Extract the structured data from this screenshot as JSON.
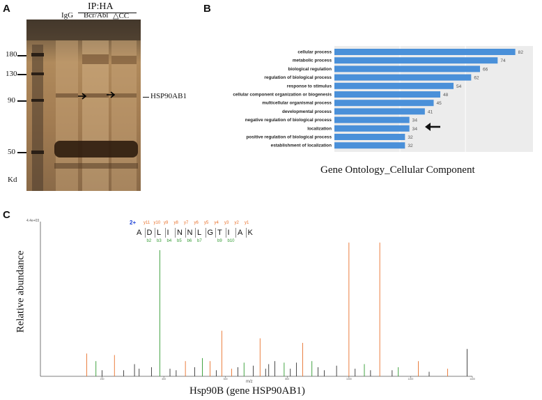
{
  "panels": {
    "a": {
      "letter": "A",
      "header": "IP:HA",
      "lanes": [
        "IgG",
        "Bcr/Abl",
        "△CC"
      ],
      "markers": [
        "180",
        "130",
        "90",
        "50"
      ],
      "unit": "Kd",
      "band_label": "HSP90AB1"
    },
    "b": {
      "letter": "B",
      "caption": "Gene Ontology_Cellular Component",
      "arrow_target": "localization",
      "colors": {
        "bar": "#4a90d9",
        "plot_bg": "#ececec"
      }
    },
    "c": {
      "letter": "C",
      "ylabel": "Relative abundance",
      "xlabel": "m/z",
      "caption": "Hsp90B (gene HSP90AB1)",
      "charge": "2+",
      "scale_label": "4.4e+03",
      "sequence": [
        "A",
        "D",
        "L",
        "I",
        "N",
        "N",
        "L",
        "G",
        "T",
        "I",
        "A",
        "K"
      ],
      "y_ions": [
        "y11",
        "y10",
        "y9",
        "y8",
        "y7",
        "y6",
        "y5",
        "y4",
        "y3",
        "y2",
        "y1"
      ],
      "b_ions": [
        "b2",
        "b3",
        "b4",
        "b5",
        "b6",
        "b7",
        "b9",
        "b10"
      ],
      "colors": {
        "y": "#e8702a",
        "b": "#2e9a2e",
        "other": "#333333"
      }
    }
  },
  "chart_data": [
    {
      "type": "bar",
      "orientation": "horizontal",
      "categories": [
        "cellular process",
        "metabolic process",
        "biological regulation",
        "regulation of biological process",
        "response to stimulus",
        "cellular component organization or biogenesis",
        "multicellular organismal process",
        "developmental process",
        "negative regulation of biological process",
        "localization",
        "positive regulation of biological process",
        "establishment of localization"
      ],
      "values": [
        82,
        74,
        66,
        62,
        54,
        48,
        45,
        41,
        34,
        34,
        32,
        32
      ],
      "xlim": [
        0,
        90
      ],
      "grid": true
    },
    {
      "type": "bar",
      "title": "",
      "xlabel": "m/z",
      "ylabel": "Relative abundance",
      "xlim": [
        0,
        1400
      ],
      "ylim": [
        0,
        100
      ],
      "xticks": [
        200,
        400,
        600,
        800,
        1000,
        1200,
        1400
      ],
      "peaks": [
        {
          "mz": 150,
          "y": 15,
          "c": "y"
        },
        {
          "mz": 180,
          "y": 10,
          "c": "b"
        },
        {
          "mz": 240,
          "y": 14,
          "c": "y"
        },
        {
          "mz": 305,
          "y": 8,
          "c": "o"
        },
        {
          "mz": 387,
          "y": 83,
          "c": "b"
        },
        {
          "mz": 470,
          "y": 10,
          "c": "y"
        },
        {
          "mz": 525,
          "y": 12,
          "c": "b"
        },
        {
          "mz": 550,
          "y": 10,
          "c": "y"
        },
        {
          "mz": 588,
          "y": 30,
          "c": "y"
        },
        {
          "mz": 620,
          "y": 5,
          "c": "y"
        },
        {
          "mz": 660,
          "y": 9,
          "c": "b"
        },
        {
          "mz": 712,
          "y": 25,
          "c": "y"
        },
        {
          "mz": 760,
          "y": 10,
          "c": "o"
        },
        {
          "mz": 790,
          "y": 9,
          "c": "b"
        },
        {
          "mz": 850,
          "y": 22,
          "c": "y"
        },
        {
          "mz": 880,
          "y": 10,
          "c": "b"
        },
        {
          "mz": 1000,
          "y": 88,
          "c": "y"
        },
        {
          "mz": 1050,
          "y": 8,
          "c": "b"
        },
        {
          "mz": 1100,
          "y": 88,
          "c": "y"
        },
        {
          "mz": 1160,
          "y": 6,
          "c": "b"
        },
        {
          "mz": 1225,
          "y": 10,
          "c": "y"
        },
        {
          "mz": 1320,
          "y": 5,
          "c": "y"
        },
        {
          "mz": 1383,
          "y": 18,
          "c": "o"
        },
        {
          "mz": 320,
          "y": 5,
          "c": "o"
        },
        {
          "mz": 360,
          "y": 6,
          "c": "o"
        },
        {
          "mz": 420,
          "y": 5,
          "c": "o"
        },
        {
          "mz": 500,
          "y": 6,
          "c": "o"
        },
        {
          "mz": 640,
          "y": 6,
          "c": "o"
        },
        {
          "mz": 690,
          "y": 7,
          "c": "o"
        },
        {
          "mz": 740,
          "y": 8,
          "c": "o"
        },
        {
          "mz": 830,
          "y": 9,
          "c": "o"
        },
        {
          "mz": 900,
          "y": 6,
          "c": "o"
        },
        {
          "mz": 960,
          "y": 7,
          "c": "o"
        },
        {
          "mz": 1020,
          "y": 5,
          "c": "o"
        },
        {
          "mz": 1140,
          "y": 4,
          "c": "o"
        },
        {
          "mz": 1260,
          "y": 3,
          "c": "o"
        },
        {
          "mz": 200,
          "y": 4,
          "c": "o"
        },
        {
          "mz": 270,
          "y": 4,
          "c": "o"
        },
        {
          "mz": 440,
          "y": 4,
          "c": "o"
        },
        {
          "mz": 570,
          "y": 4,
          "c": "o"
        },
        {
          "mz": 730,
          "y": 5,
          "c": "o"
        },
        {
          "mz": 810,
          "y": 5,
          "c": "o"
        },
        {
          "mz": 920,
          "y": 4,
          "c": "o"
        },
        {
          "mz": 1070,
          "y": 4,
          "c": "o"
        }
      ]
    }
  ]
}
